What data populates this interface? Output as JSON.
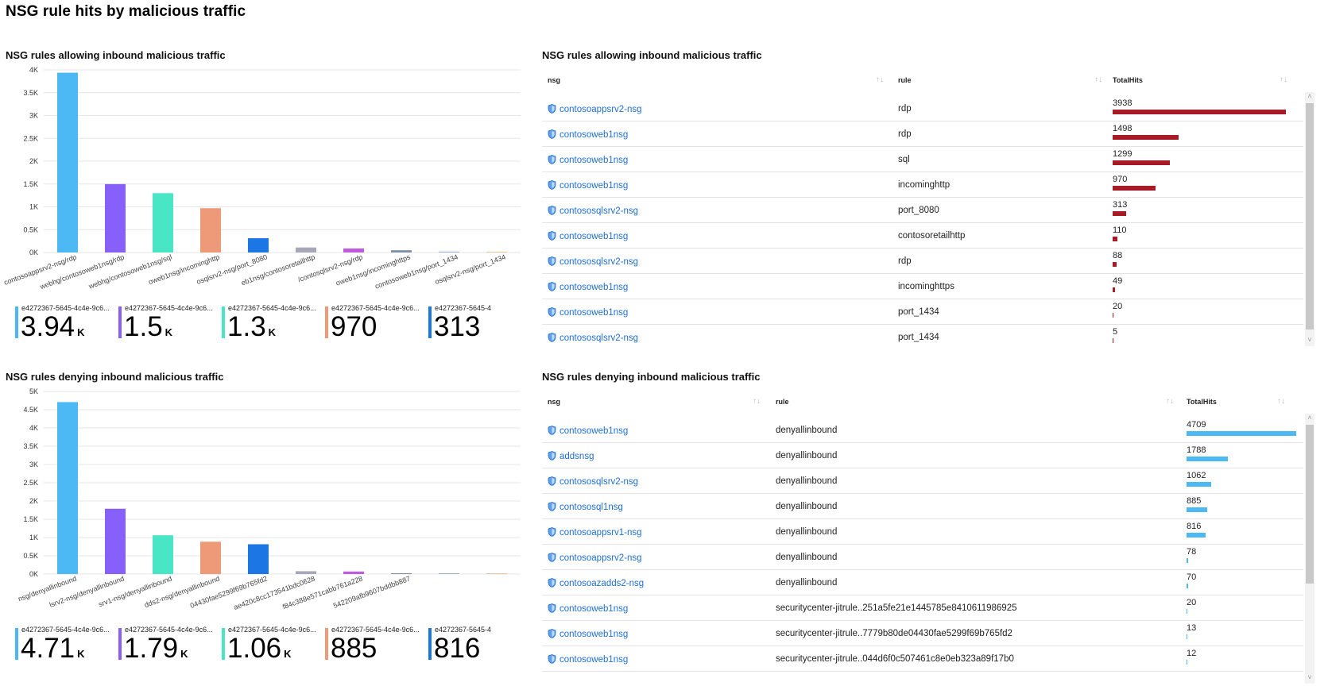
{
  "page": {
    "title": "NSG rule hits by malicious traffic"
  },
  "panels": {
    "allow_chart": {
      "title": "NSG rules allowing inbound malicious traffic",
      "chart_data": {
        "type": "bar",
        "categories": [
          "contosoappsrv2-nsg/rdp",
          "webhg/contosoweb1nsg/rdp",
          "webhg/contosoweb1nsg/sql",
          "oweb1nsg/incominghttp",
          "osqlsrv2-nsg/port_8080",
          "eb1nsg/contosoretailhttp",
          "/contosqlsrv2-nsg/rdp",
          "oweb1nsg/incominghttps",
          "contosoweb1nsg/port_1434",
          "osqlsrv2-nsg/port_1434"
        ],
        "values": [
          3938,
          1498,
          1299,
          970,
          313,
          110,
          88,
          49,
          20,
          5
        ],
        "colors": [
          "#4cb8f4",
          "#8660f9",
          "#48e6c4",
          "#ee9a79",
          "#1c76e3",
          "#a6a7b9",
          "#c05bdc",
          "#7e8fa8",
          "#a0b4ce",
          "#e8c6a0"
        ],
        "ylim": [
          0,
          4000
        ],
        "yticks": [
          "0K",
          "0.5K",
          "1K",
          "1.5K",
          "2K",
          "2.5K",
          "3K",
          "3.5K",
          "4K"
        ],
        "grid": true,
        "xlabel": "",
        "ylabel": ""
      },
      "tiles": [
        {
          "label": "e4272367-5645-4c4e-9c6...",
          "value": "3.94",
          "suffix": "K",
          "color": "#4cb8f4"
        },
        {
          "label": "e4272367-5645-4c4e-9c6...",
          "value": "1.5",
          "suffix": "K",
          "color": "#8660f9"
        },
        {
          "label": "e4272367-5645-4c4e-9c6...",
          "value": "1.3",
          "suffix": "K",
          "color": "#48e6c4"
        },
        {
          "label": "e4272367-5645-4c4e-9c6...",
          "value": "970",
          "suffix": "",
          "color": "#ee9a79"
        },
        {
          "label": "e4272367-5645-4",
          "value": "313",
          "suffix": "",
          "color": "#1c76e3"
        }
      ]
    },
    "allow_table": {
      "title": "NSG rules allowing inbound malicious traffic",
      "columns": [
        "nsg",
        "rule",
        "TotalHits"
      ],
      "bar_color": "#a81b25",
      "max": 3938,
      "rows": [
        {
          "nsg": "contosoappsrv2-nsg",
          "rule": "rdp",
          "hits": 3938
        },
        {
          "nsg": "contosoweb1nsg",
          "rule": "rdp",
          "hits": 1498
        },
        {
          "nsg": "contosoweb1nsg",
          "rule": "sql",
          "hits": 1299
        },
        {
          "nsg": "contosoweb1nsg",
          "rule": "incominghttp",
          "hits": 970
        },
        {
          "nsg": "contososqlsrv2-nsg",
          "rule": "port_8080",
          "hits": 313
        },
        {
          "nsg": "contosoweb1nsg",
          "rule": "contosoretailhttp",
          "hits": 110
        },
        {
          "nsg": "contososqlsrv2-nsg",
          "rule": "rdp",
          "hits": 88
        },
        {
          "nsg": "contosoweb1nsg",
          "rule": "incominghttps",
          "hits": 49
        },
        {
          "nsg": "contosoweb1nsg",
          "rule": "port_1434",
          "hits": 20
        },
        {
          "nsg": "contososqlsrv2-nsg",
          "rule": "port_1434",
          "hits": 5
        }
      ]
    },
    "deny_chart": {
      "title": "NSG rules denying inbound malicious traffic",
      "chart_data": {
        "type": "bar",
        "categories": [
          "nsg/denyallinbound",
          "lsrv2-nsg/denyallinbound",
          "srv1-nsg/denyallinbound",
          "dds2-nsg/denyallinbound",
          "04430fae5299f69b765fd2",
          "ae420c8cc173541bdc0628",
          "f84c388e571cabb761a228",
          "542209afb9607bddbb887",
          "",
          ""
        ],
        "values": [
          4709,
          1788,
          1062,
          885,
          816,
          78,
          70,
          20,
          13,
          12
        ],
        "colors": [
          "#4cb8f4",
          "#8660f9",
          "#48e6c4",
          "#ee9a79",
          "#1c76e3",
          "#a6a7b9",
          "#c05bdc",
          "#7e8fa8",
          "#a0b4ce",
          "#e8c6a0"
        ],
        "ylim": [
          0,
          5000
        ],
        "yticks": [
          "0K",
          "0.5K",
          "1K",
          "1.5K",
          "2K",
          "2.5K",
          "3K",
          "3.5K",
          "4K",
          "4.5K",
          "5K"
        ],
        "grid": true,
        "xlabel": "",
        "ylabel": ""
      },
      "tiles": [
        {
          "label": "e4272367-5645-4c4e-9c6...",
          "value": "4.71",
          "suffix": "K",
          "color": "#4cb8f4"
        },
        {
          "label": "e4272367-5645-4c4e-9c6...",
          "value": "1.79",
          "suffix": "K",
          "color": "#8660f9"
        },
        {
          "label": "e4272367-5645-4c4e-9c6...",
          "value": "1.06",
          "suffix": "K",
          "color": "#48e6c4"
        },
        {
          "label": "e4272367-5645-4c4e-9c6...",
          "value": "885",
          "suffix": "",
          "color": "#ee9a79"
        },
        {
          "label": "e4272367-5645-4",
          "value": "816",
          "suffix": "",
          "color": "#1c76e3"
        }
      ]
    },
    "deny_table": {
      "title": "NSG rules denying inbound malicious traffic",
      "columns": [
        "nsg",
        "rule",
        "TotalHits"
      ],
      "bar_color": "#4cb8f4",
      "max": 4709,
      "rows": [
        {
          "nsg": "contosoweb1nsg",
          "rule": "denyallinbound",
          "hits": 4709
        },
        {
          "nsg": "addsnsg",
          "rule": "denyallinbound",
          "hits": 1788
        },
        {
          "nsg": "contososqlsrv2-nsg",
          "rule": "denyallinbound",
          "hits": 1062
        },
        {
          "nsg": "contososql1nsg",
          "rule": "denyallinbound",
          "hits": 885
        },
        {
          "nsg": "contosoappsrv1-nsg",
          "rule": "denyallinbound",
          "hits": 816
        },
        {
          "nsg": "contosoappsrv2-nsg",
          "rule": "denyallinbound",
          "hits": 78
        },
        {
          "nsg": "contosoazadds2-nsg",
          "rule": "denyallinbound",
          "hits": 70
        },
        {
          "nsg": "contosoweb1nsg",
          "rule": "securitycenter-jitrule..251a5fe21e1445785e8410611986925",
          "hits": 20
        },
        {
          "nsg": "contosoweb1nsg",
          "rule": "securitycenter-jitrule..7779b80de04430fae5299f69b765fd2",
          "hits": 13
        },
        {
          "nsg": "contosoweb1nsg",
          "rule": "securitycenter-jitrule..044d6f0c507461c8e0eb323a89f17b0",
          "hits": 12
        }
      ]
    }
  }
}
